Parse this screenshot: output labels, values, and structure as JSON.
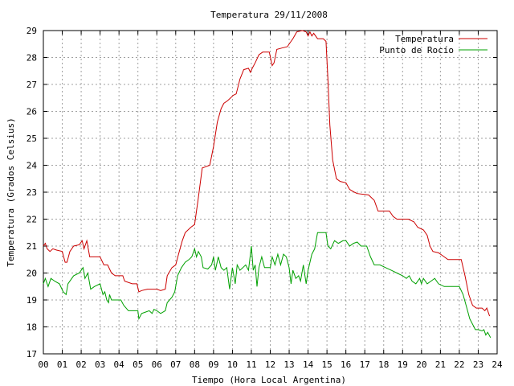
{
  "chart_data": {
    "type": "line",
    "title": "Temperatura 29/11/2008",
    "xlabel": "Tiempo (Hora Local Argentina)",
    "ylabel": "Temperatura (Grados Celsius)",
    "xlim": [
      0,
      24
    ],
    "ylim": [
      17,
      29
    ],
    "x_ticks": [
      "00",
      "01",
      "02",
      "03",
      "04",
      "05",
      "06",
      "07",
      "08",
      "09",
      "10",
      "11",
      "12",
      "13",
      "14",
      "15",
      "16",
      "17",
      "18",
      "19",
      "20",
      "21",
      "22",
      "23",
      "24"
    ],
    "y_ticks": [
      "17",
      "18",
      "19",
      "20",
      "21",
      "22",
      "23",
      "24",
      "25",
      "26",
      "27",
      "28",
      "29"
    ],
    "grid": true,
    "legend_position": "top-right",
    "series": [
      {
        "name": "Temperatura",
        "color": "#cc0000",
        "points": [
          [
            0.0,
            21.0
          ],
          [
            0.1,
            21.1
          ],
          [
            0.2,
            20.9
          ],
          [
            0.35,
            20.8
          ],
          [
            0.5,
            20.9
          ],
          [
            0.7,
            20.85
          ],
          [
            1.0,
            20.8
          ],
          [
            1.15,
            20.4
          ],
          [
            1.25,
            20.4
          ],
          [
            1.4,
            20.8
          ],
          [
            1.6,
            21.0
          ],
          [
            1.9,
            21.05
          ],
          [
            2.05,
            21.2
          ],
          [
            2.15,
            20.9
          ],
          [
            2.3,
            21.2
          ],
          [
            2.45,
            20.6
          ],
          [
            2.6,
            20.6
          ],
          [
            3.0,
            20.6
          ],
          [
            3.2,
            20.3
          ],
          [
            3.4,
            20.3
          ],
          [
            3.6,
            20.0
          ],
          [
            3.8,
            19.9
          ],
          [
            4.2,
            19.9
          ],
          [
            4.3,
            19.7
          ],
          [
            4.7,
            19.6
          ],
          [
            4.95,
            19.6
          ],
          [
            5.05,
            19.3
          ],
          [
            5.2,
            19.35
          ],
          [
            5.5,
            19.4
          ],
          [
            6.0,
            19.4
          ],
          [
            6.2,
            19.35
          ],
          [
            6.45,
            19.4
          ],
          [
            6.55,
            19.9
          ],
          [
            6.8,
            20.2
          ],
          [
            7.0,
            20.3
          ],
          [
            7.15,
            20.7
          ],
          [
            7.35,
            21.2
          ],
          [
            7.5,
            21.5
          ],
          [
            7.8,
            21.7
          ],
          [
            8.0,
            21.8
          ],
          [
            8.2,
            22.8
          ],
          [
            8.4,
            23.9
          ],
          [
            8.8,
            24.0
          ],
          [
            9.0,
            24.7
          ],
          [
            9.2,
            25.6
          ],
          [
            9.4,
            26.1
          ],
          [
            9.55,
            26.3
          ],
          [
            9.75,
            26.4
          ],
          [
            9.9,
            26.5
          ],
          [
            10.05,
            26.6
          ],
          [
            10.2,
            26.65
          ],
          [
            10.4,
            27.2
          ],
          [
            10.6,
            27.55
          ],
          [
            10.85,
            27.6
          ],
          [
            10.95,
            27.45
          ],
          [
            11.05,
            27.6
          ],
          [
            11.2,
            27.8
          ],
          [
            11.4,
            28.1
          ],
          [
            11.6,
            28.2
          ],
          [
            11.95,
            28.2
          ],
          [
            12.1,
            27.7
          ],
          [
            12.2,
            27.8
          ],
          [
            12.35,
            28.3
          ],
          [
            12.6,
            28.35
          ],
          [
            12.9,
            28.4
          ],
          [
            13.2,
            28.7
          ],
          [
            13.4,
            28.95
          ],
          [
            13.7,
            29.0
          ],
          [
            13.9,
            28.95
          ],
          [
            14.0,
            28.8
          ],
          [
            14.1,
            28.95
          ],
          [
            14.2,
            28.8
          ],
          [
            14.3,
            28.9
          ],
          [
            14.5,
            28.7
          ],
          [
            14.8,
            28.7
          ],
          [
            14.95,
            28.6
          ],
          [
            15.05,
            27.2
          ],
          [
            15.15,
            25.5
          ],
          [
            15.3,
            24.2
          ],
          [
            15.5,
            23.5
          ],
          [
            15.7,
            23.4
          ],
          [
            16.0,
            23.35
          ],
          [
            16.2,
            23.1
          ],
          [
            16.45,
            23.0
          ],
          [
            16.6,
            22.95
          ],
          [
            17.2,
            22.9
          ],
          [
            17.5,
            22.7
          ],
          [
            17.7,
            22.3
          ],
          [
            18.3,
            22.3
          ],
          [
            18.5,
            22.1
          ],
          [
            18.7,
            22.0
          ],
          [
            19.3,
            22.0
          ],
          [
            19.6,
            21.9
          ],
          [
            19.8,
            21.7
          ],
          [
            20.1,
            21.6
          ],
          [
            20.3,
            21.4
          ],
          [
            20.45,
            21.0
          ],
          [
            20.6,
            20.8
          ],
          [
            20.9,
            20.75
          ],
          [
            21.2,
            20.6
          ],
          [
            21.4,
            20.5
          ],
          [
            21.9,
            20.5
          ],
          [
            22.1,
            20.5
          ],
          [
            22.3,
            19.9
          ],
          [
            22.5,
            19.2
          ],
          [
            22.7,
            18.8
          ],
          [
            22.9,
            18.7
          ],
          [
            23.2,
            18.7
          ],
          [
            23.35,
            18.6
          ],
          [
            23.45,
            18.7
          ],
          [
            23.6,
            18.4
          ]
        ]
      },
      {
        "name": "Punto de Rocío",
        "color": "#00a000",
        "points": [
          [
            0.0,
            19.6
          ],
          [
            0.1,
            19.8
          ],
          [
            0.25,
            19.5
          ],
          [
            0.4,
            19.8
          ],
          [
            0.6,
            19.7
          ],
          [
            0.85,
            19.6
          ],
          [
            1.05,
            19.3
          ],
          [
            1.2,
            19.2
          ],
          [
            1.3,
            19.6
          ],
          [
            1.6,
            19.9
          ],
          [
            1.9,
            20.0
          ],
          [
            2.1,
            20.2
          ],
          [
            2.2,
            19.8
          ],
          [
            2.35,
            20.0
          ],
          [
            2.5,
            19.4
          ],
          [
            2.7,
            19.5
          ],
          [
            3.0,
            19.6
          ],
          [
            3.15,
            19.2
          ],
          [
            3.25,
            19.3
          ],
          [
            3.35,
            19.0
          ],
          [
            3.45,
            18.9
          ],
          [
            3.5,
            19.2
          ],
          [
            3.6,
            19.0
          ],
          [
            4.1,
            19.0
          ],
          [
            4.25,
            18.8
          ],
          [
            4.5,
            18.6
          ],
          [
            4.7,
            18.6
          ],
          [
            5.0,
            18.6
          ],
          [
            5.05,
            18.3
          ],
          [
            5.2,
            18.5
          ],
          [
            5.4,
            18.55
          ],
          [
            5.6,
            18.6
          ],
          [
            5.75,
            18.5
          ],
          [
            5.85,
            18.65
          ],
          [
            6.0,
            18.6
          ],
          [
            6.2,
            18.5
          ],
          [
            6.45,
            18.6
          ],
          [
            6.55,
            18.9
          ],
          [
            6.8,
            19.1
          ],
          [
            6.95,
            19.3
          ],
          [
            7.1,
            19.9
          ],
          [
            7.3,
            20.2
          ],
          [
            7.5,
            20.4
          ],
          [
            7.7,
            20.5
          ],
          [
            7.85,
            20.6
          ],
          [
            8.0,
            20.9
          ],
          [
            8.1,
            20.6
          ],
          [
            8.2,
            20.8
          ],
          [
            8.35,
            20.6
          ],
          [
            8.45,
            20.2
          ],
          [
            8.7,
            20.15
          ],
          [
            8.9,
            20.3
          ],
          [
            9.0,
            20.6
          ],
          [
            9.1,
            20.1
          ],
          [
            9.25,
            20.6
          ],
          [
            9.4,
            20.2
          ],
          [
            9.55,
            20.1
          ],
          [
            9.7,
            20.2
          ],
          [
            9.85,
            19.4
          ],
          [
            10.0,
            20.2
          ],
          [
            10.15,
            19.6
          ],
          [
            10.25,
            20.3
          ],
          [
            10.4,
            20.1
          ],
          [
            10.55,
            20.2
          ],
          [
            10.7,
            20.3
          ],
          [
            10.85,
            20.1
          ],
          [
            11.0,
            21.0
          ],
          [
            11.1,
            20.1
          ],
          [
            11.2,
            20.3
          ],
          [
            11.3,
            19.5
          ],
          [
            11.4,
            20.2
          ],
          [
            11.55,
            20.6
          ],
          [
            11.7,
            20.2
          ],
          [
            12.0,
            20.2
          ],
          [
            12.1,
            20.6
          ],
          [
            12.25,
            20.3
          ],
          [
            12.4,
            20.7
          ],
          [
            12.55,
            20.3
          ],
          [
            12.7,
            20.7
          ],
          [
            12.85,
            20.6
          ],
          [
            13.0,
            20.2
          ],
          [
            13.1,
            19.6
          ],
          [
            13.2,
            20.1
          ],
          [
            13.35,
            19.8
          ],
          [
            13.5,
            19.9
          ],
          [
            13.6,
            19.7
          ],
          [
            13.75,
            20.3
          ],
          [
            13.9,
            19.6
          ],
          [
            14.0,
            20.1
          ],
          [
            14.2,
            20.7
          ],
          [
            14.35,
            20.9
          ],
          [
            14.5,
            21.5
          ],
          [
            14.95,
            21.5
          ],
          [
            15.05,
            21.0
          ],
          [
            15.2,
            20.9
          ],
          [
            15.4,
            21.2
          ],
          [
            15.6,
            21.1
          ],
          [
            15.85,
            21.2
          ],
          [
            16.0,
            21.2
          ],
          [
            16.2,
            21.0
          ],
          [
            16.4,
            21.1
          ],
          [
            16.6,
            21.15
          ],
          [
            16.8,
            21.0
          ],
          [
            17.1,
            21.0
          ],
          [
            17.3,
            20.6
          ],
          [
            17.5,
            20.3
          ],
          [
            17.8,
            20.3
          ],
          [
            18.1,
            20.2
          ],
          [
            18.4,
            20.1
          ],
          [
            18.7,
            20.0
          ],
          [
            19.0,
            19.9
          ],
          [
            19.2,
            19.8
          ],
          [
            19.35,
            19.9
          ],
          [
            19.5,
            19.7
          ],
          [
            19.7,
            19.6
          ],
          [
            19.9,
            19.8
          ],
          [
            20.0,
            19.6
          ],
          [
            20.1,
            19.8
          ],
          [
            20.3,
            19.6
          ],
          [
            20.5,
            19.7
          ],
          [
            20.7,
            19.8
          ],
          [
            20.9,
            19.6
          ],
          [
            21.2,
            19.5
          ],
          [
            21.4,
            19.5
          ],
          [
            21.6,
            19.5
          ],
          [
            21.8,
            19.5
          ],
          [
            22.0,
            19.5
          ],
          [
            22.2,
            19.2
          ],
          [
            22.4,
            18.7
          ],
          [
            22.55,
            18.3
          ],
          [
            22.7,
            18.1
          ],
          [
            22.85,
            17.9
          ],
          [
            23.0,
            17.9
          ],
          [
            23.2,
            17.85
          ],
          [
            23.3,
            17.9
          ],
          [
            23.4,
            17.7
          ],
          [
            23.5,
            17.8
          ],
          [
            23.65,
            17.6
          ]
        ]
      }
    ]
  }
}
